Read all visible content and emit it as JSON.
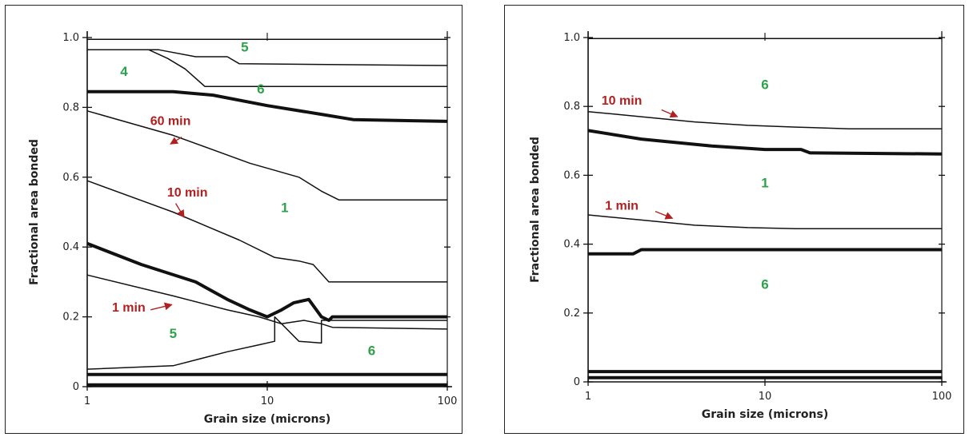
{
  "colors": {
    "curve": "#111111",
    "region_label": "#2ea24a",
    "time_label": "#b11f1f"
  },
  "chart_data": [
    {
      "type": "line",
      "x_scale": "log",
      "xlim": [
        1,
        100
      ],
      "ylim": [
        0,
        1.0
      ],
      "xlabel": "Grain size (microns)",
      "ylabel": "Fractional area bonded",
      "x_ticks": [
        "1",
        "10",
        "100"
      ],
      "y_ticks": [
        "0",
        "0.2",
        "0.4",
        "0.6",
        "0.8",
        "1.0"
      ],
      "series": [
        {
          "style": "thin",
          "x": [
            1,
            100
          ],
          "y": [
            0.995,
            0.995
          ]
        },
        {
          "style": "thin",
          "x": [
            1,
            2.5,
            4,
            6,
            7,
            100
          ],
          "y": [
            0.965,
            0.965,
            0.945,
            0.945,
            0.925,
            0.92
          ]
        },
        {
          "style": "thin",
          "x": [
            1,
            2.2,
            2.8,
            3.5,
            4.5,
            100
          ],
          "y": [
            0.965,
            0.965,
            0.94,
            0.91,
            0.86,
            0.86
          ]
        },
        {
          "style": "thick",
          "x": [
            1,
            3,
            5,
            10,
            20,
            30,
            100
          ],
          "y": [
            0.845,
            0.845,
            0.835,
            0.805,
            0.78,
            0.765,
            0.76
          ]
        },
        {
          "style": "thin",
          "x": [
            1,
            3,
            8,
            15,
            20,
            25,
            100
          ],
          "y": [
            0.79,
            0.72,
            0.64,
            0.6,
            0.56,
            0.535,
            0.535
          ]
        },
        {
          "style": "thin",
          "x": [
            1,
            3,
            7,
            11,
            15,
            18,
            22,
            100
          ],
          "y": [
            0.59,
            0.5,
            0.42,
            0.37,
            0.36,
            0.35,
            0.3,
            0.3
          ]
        },
        {
          "style": "thick",
          "x": [
            1,
            2,
            4,
            6,
            8,
            10,
            12,
            14,
            17,
            20,
            22,
            23,
            100
          ],
          "y": [
            0.41,
            0.35,
            0.3,
            0.25,
            0.22,
            0.2,
            0.22,
            0.24,
            0.25,
            0.2,
            0.19,
            0.2,
            0.2
          ]
        },
        {
          "style": "thin",
          "x": [
            1,
            3,
            6,
            9,
            12,
            16,
            20,
            23,
            100
          ],
          "y": [
            0.32,
            0.26,
            0.22,
            0.2,
            0.18,
            0.19,
            0.18,
            0.17,
            0.165
          ]
        },
        {
          "style": "thin",
          "x": [
            1,
            3,
            6,
            9,
            11,
            11,
            15,
            20,
            20,
            100
          ],
          "y": [
            0.05,
            0.06,
            0.1,
            0.12,
            0.13,
            0.2,
            0.13,
            0.125,
            0.19,
            0.19
          ]
        },
        {
          "style": "thick",
          "x": [
            1,
            100
          ],
          "y": [
            0.035,
            0.035
          ]
        },
        {
          "style": "thick",
          "x": [
            1,
            100
          ],
          "y": [
            0.005,
            0.005
          ]
        }
      ],
      "region_labels": [
        {
          "text": "4",
          "x": 1.6,
          "y": 0.89
        },
        {
          "text": "5",
          "x": 7.5,
          "y": 0.96
        },
        {
          "text": "6",
          "x": 9.2,
          "y": 0.84
        },
        {
          "text": "1",
          "x": 12.5,
          "y": 0.5
        },
        {
          "text": "5",
          "x": 3.0,
          "y": 0.14
        },
        {
          "text": "6",
          "x": 38,
          "y": 0.09
        }
      ],
      "annotations": [
        {
          "text": "60 min",
          "x": 2.9,
          "y": 0.75,
          "ax": 3.35,
          "ay": 0.715,
          "hx": 2.9,
          "hy": 0.695
        },
        {
          "text": "10 min",
          "x": 3.6,
          "y": 0.545,
          "ax": 3.1,
          "ay": 0.525,
          "hx": 3.45,
          "hy": 0.485
        },
        {
          "text": "1 min",
          "x": 1.7,
          "y": 0.215,
          "ax": 2.25,
          "ay": 0.22,
          "hx": 2.95,
          "hy": 0.235
        }
      ]
    },
    {
      "type": "line",
      "x_scale": "log",
      "xlim": [
        1,
        100
      ],
      "ylim": [
        0,
        1.0
      ],
      "xlabel": "Grain size (microns)",
      "ylabel": "Fractional area bonded",
      "x_ticks": [
        "1",
        "10",
        "100"
      ],
      "y_ticks": [
        "0",
        "0.2",
        "0.4",
        "0.6",
        "0.8",
        "1.0"
      ],
      "series": [
        {
          "style": "thin",
          "x": [
            1,
            100
          ],
          "y": [
            0.997,
            0.997
          ]
        },
        {
          "style": "thin",
          "x": [
            1,
            2,
            4,
            8,
            15,
            30,
            100
          ],
          "y": [
            0.785,
            0.77,
            0.755,
            0.745,
            0.74,
            0.735,
            0.735
          ]
        },
        {
          "style": "thick",
          "x": [
            1,
            2,
            5,
            10,
            16,
            18,
            100
          ],
          "y": [
            0.73,
            0.705,
            0.685,
            0.675,
            0.675,
            0.665,
            0.662
          ]
        },
        {
          "style": "thin",
          "x": [
            1,
            2,
            4,
            8,
            15,
            30,
            100
          ],
          "y": [
            0.485,
            0.47,
            0.455,
            0.448,
            0.445,
            0.445,
            0.445
          ]
        },
        {
          "style": "thick",
          "x": [
            1,
            1.8,
            2.0,
            100
          ],
          "y": [
            0.372,
            0.372,
            0.384,
            0.384
          ]
        },
        {
          "style": "thick",
          "x": [
            1,
            100
          ],
          "y": [
            0.03,
            0.03
          ]
        },
        {
          "style": "thick",
          "x": [
            1,
            100
          ],
          "y": [
            0.012,
            0.012
          ]
        }
      ],
      "region_labels": [
        {
          "text": "6",
          "x": 10,
          "y": 0.85
        },
        {
          "text": "1",
          "x": 10,
          "y": 0.565
        },
        {
          "text": "6",
          "x": 10,
          "y": 0.27
        }
      ],
      "annotations": [
        {
          "text": "10 min",
          "x": 1.55,
          "y": 0.805,
          "ax": 2.6,
          "ay": 0.79,
          "hx": 3.2,
          "hy": 0.77
        },
        {
          "text": "1 min",
          "x": 1.55,
          "y": 0.5,
          "ax": 2.4,
          "ay": 0.495,
          "hx": 3.0,
          "hy": 0.475
        }
      ]
    }
  ]
}
